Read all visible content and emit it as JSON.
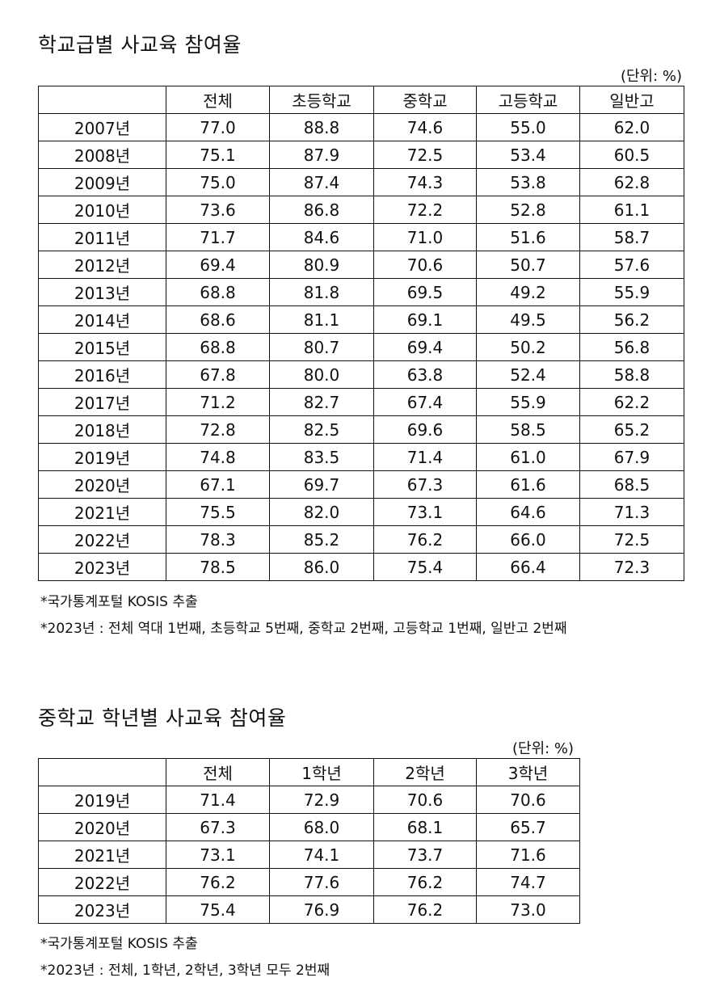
{
  "table1": {
    "title": "학교급별 사교육 참여율",
    "unit": "(단위: %)",
    "headers": [
      "",
      "전체",
      "초등학교",
      "중학교",
      "고등학교",
      "일반고"
    ],
    "rows": [
      [
        "2007년",
        "77.0",
        "88.8",
        "74.6",
        "55.0",
        "62.0"
      ],
      [
        "2008년",
        "75.1",
        "87.9",
        "72.5",
        "53.4",
        "60.5"
      ],
      [
        "2009년",
        "75.0",
        "87.4",
        "74.3",
        "53.8",
        "62.8"
      ],
      [
        "2010년",
        "73.6",
        "86.8",
        "72.2",
        "52.8",
        "61.1"
      ],
      [
        "2011년",
        "71.7",
        "84.6",
        "71.0",
        "51.6",
        "58.7"
      ],
      [
        "2012년",
        "69.4",
        "80.9",
        "70.6",
        "50.7",
        "57.6"
      ],
      [
        "2013년",
        "68.8",
        "81.8",
        "69.5",
        "49.2",
        "55.9"
      ],
      [
        "2014년",
        "68.6",
        "81.1",
        "69.1",
        "49.5",
        "56.2"
      ],
      [
        "2015년",
        "68.8",
        "80.7",
        "69.4",
        "50.2",
        "56.8"
      ],
      [
        "2016년",
        "67.8",
        "80.0",
        "63.8",
        "52.4",
        "58.8"
      ],
      [
        "2017년",
        "71.2",
        "82.7",
        "67.4",
        "55.9",
        "62.2"
      ],
      [
        "2018년",
        "72.8",
        "82.5",
        "69.6",
        "58.5",
        "65.2"
      ],
      [
        "2019년",
        "74.8",
        "83.5",
        "71.4",
        "61.0",
        "67.9"
      ],
      [
        "2020년",
        "67.1",
        "69.7",
        "67.3",
        "61.6",
        "68.5"
      ],
      [
        "2021년",
        "75.5",
        "82.0",
        "73.1",
        "64.6",
        "71.3"
      ],
      [
        "2022년",
        "78.3",
        "85.2",
        "76.2",
        "66.0",
        "72.5"
      ],
      [
        "2023년",
        "78.5",
        "86.0",
        "75.4",
        "66.4",
        "72.3"
      ]
    ],
    "notes": [
      "*국가통계포털 KOSIS 추출",
      "*2023년 : 전체 역대 1번째, 초등학교 5번째, 중학교 2번째, 고등학교 1번째, 일반고 2번째"
    ]
  },
  "table2": {
    "title": "중학교 학년별 사교육 참여율",
    "unit": "(단위: %)",
    "headers": [
      "",
      "전체",
      "1학년",
      "2학년",
      "3학년"
    ],
    "rows": [
      [
        "2019년",
        "71.4",
        "72.9",
        "70.6",
        "70.6"
      ],
      [
        "2020년",
        "67.3",
        "68.0",
        "68.1",
        "65.7"
      ],
      [
        "2021년",
        "73.1",
        "74.1",
        "73.7",
        "71.6"
      ],
      [
        "2022년",
        "76.2",
        "77.6",
        "76.2",
        "74.7"
      ],
      [
        "2023년",
        "75.4",
        "76.9",
        "76.2",
        "73.0"
      ]
    ],
    "notes": [
      "*국가통계포털 KOSIS 추출",
      "*2023년 : 전체, 1학년, 2학년, 3학년 모두 2번째"
    ]
  }
}
